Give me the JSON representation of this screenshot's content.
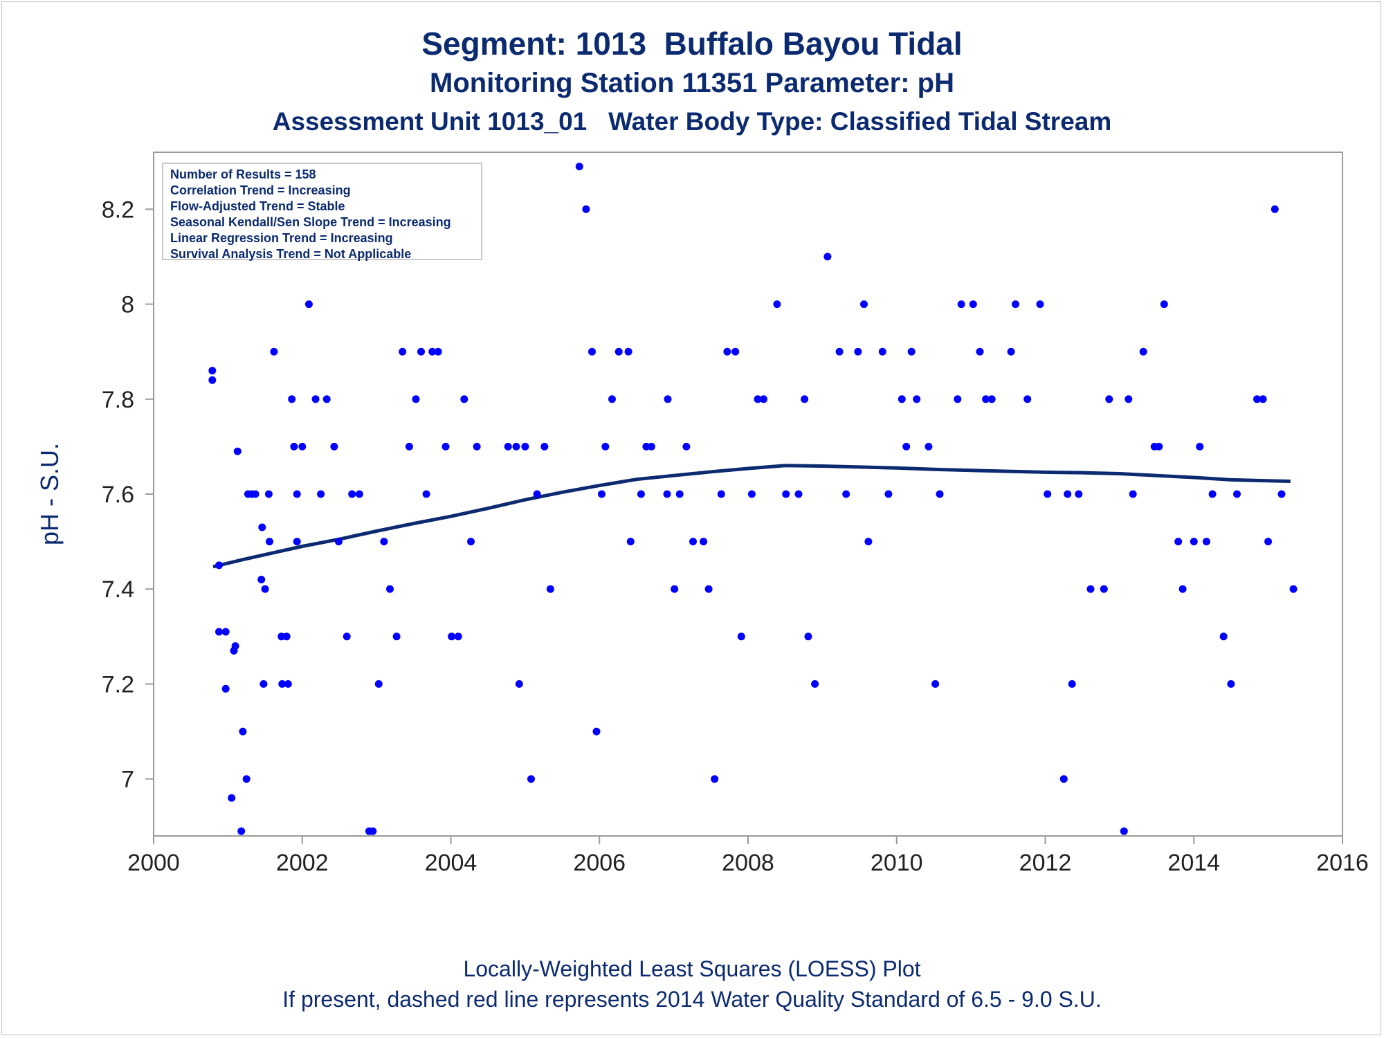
{
  "titles": {
    "line1": "Segment: 1013  Buffalo Bayou Tidal",
    "line2": "Monitoring Station 11351 Parameter: pH",
    "line3": "Assessment Unit 1013_01   Water Body Type: Classified Tidal Stream"
  },
  "footnotes": {
    "line1": "Locally-Weighted Least Squares (LOESS) Plot",
    "line2": "If present, dashed red line represents 2014 Water Quality Standard of 6.5 - 9.0 S.U."
  },
  "stats_box": [
    "Number of Results = 158",
    "Correlation Trend = Increasing",
    "Flow-Adjusted Trend = Stable",
    "Seasonal Kendall/Sen Slope Trend = Increasing",
    "Linear Regression Trend = Increasing",
    "Survival Analysis Trend = Not Applicable"
  ],
  "colors": {
    "points": "#0000ff",
    "loess_line": "#0b2a6f",
    "text": "#0b2a6f",
    "axis": "#9a9a9a"
  },
  "chart_data": {
    "type": "scatter",
    "title": "Segment: 1013  Buffalo Bayou Tidal",
    "xlabel": "",
    "ylabel": "pH - S.U.",
    "xlim": [
      2000,
      2016
    ],
    "ylim": [
      6.88,
      8.32
    ],
    "x_ticks": [
      2000,
      2002,
      2004,
      2006,
      2008,
      2010,
      2012,
      2014,
      2016
    ],
    "y_ticks": [
      7,
      7.2,
      7.4,
      7.6,
      7.8,
      8,
      8.2
    ],
    "y_tick_labels": [
      "7",
      "7.2",
      "7.4",
      "7.6",
      "7.8",
      "8",
      "8.2"
    ],
    "grid": false,
    "series": [
      {
        "type": "scatter",
        "points": [
          [
            2000.79,
            7.86
          ],
          [
            2000.79,
            7.84
          ],
          [
            2000.88,
            7.45
          ],
          [
            2000.88,
            7.31
          ],
          [
            2000.97,
            7.31
          ],
          [
            2000.97,
            7.19
          ],
          [
            2001.05,
            6.96
          ],
          [
            2001.08,
            7.27
          ],
          [
            2001.1,
            7.28
          ],
          [
            2001.13,
            7.69
          ],
          [
            2001.18,
            6.89
          ],
          [
            2001.2,
            7.1
          ],
          [
            2001.25,
            7.0
          ],
          [
            2001.27,
            7.6
          ],
          [
            2001.32,
            7.6
          ],
          [
            2001.37,
            7.6
          ],
          [
            2001.45,
            7.42
          ],
          [
            2001.46,
            7.53
          ],
          [
            2001.48,
            7.2
          ],
          [
            2001.5,
            7.4
          ],
          [
            2001.55,
            7.6
          ],
          [
            2001.56,
            7.5
          ],
          [
            2001.62,
            7.9
          ],
          [
            2001.72,
            7.3
          ],
          [
            2001.73,
            7.2
          ],
          [
            2001.79,
            7.3
          ],
          [
            2001.81,
            7.2
          ],
          [
            2001.86,
            7.8
          ],
          [
            2001.89,
            7.7
          ],
          [
            2001.93,
            7.6
          ],
          [
            2001.93,
            7.5
          ],
          [
            2002.0,
            7.7
          ],
          [
            2002.09,
            8.0
          ],
          [
            2002.18,
            7.8
          ],
          [
            2002.25,
            7.6
          ],
          [
            2002.33,
            7.8
          ],
          [
            2002.43,
            7.7
          ],
          [
            2002.49,
            7.5
          ],
          [
            2002.6,
            7.3
          ],
          [
            2002.67,
            7.6
          ],
          [
            2002.77,
            7.6
          ],
          [
            2002.9,
            6.89
          ],
          [
            2002.95,
            6.89
          ],
          [
            2003.03,
            7.2
          ],
          [
            2003.1,
            7.5
          ],
          [
            2003.18,
            7.4
          ],
          [
            2003.27,
            7.3
          ],
          [
            2003.35,
            7.9
          ],
          [
            2003.44,
            7.7
          ],
          [
            2003.53,
            7.8
          ],
          [
            2003.6,
            7.9
          ],
          [
            2003.67,
            7.6
          ],
          [
            2003.75,
            7.9
          ],
          [
            2003.83,
            7.9
          ],
          [
            2003.93,
            7.7
          ],
          [
            2004.01,
            7.3
          ],
          [
            2004.1,
            7.3
          ],
          [
            2004.18,
            7.8
          ],
          [
            2004.27,
            7.5
          ],
          [
            2004.35,
            7.7
          ],
          [
            2004.77,
            7.7
          ],
          [
            2004.88,
            7.7
          ],
          [
            2004.92,
            7.2
          ],
          [
            2005.0,
            7.7
          ],
          [
            2005.08,
            7.0
          ],
          [
            2005.16,
            7.6
          ],
          [
            2005.26,
            7.7
          ],
          [
            2005.34,
            7.4
          ],
          [
            2005.73,
            8.29
          ],
          [
            2005.82,
            8.2
          ],
          [
            2005.9,
            7.9
          ],
          [
            2005.96,
            7.1
          ],
          [
            2006.03,
            7.6
          ],
          [
            2006.08,
            7.7
          ],
          [
            2006.17,
            7.8
          ],
          [
            2006.26,
            7.9
          ],
          [
            2006.39,
            7.9
          ],
          [
            2006.42,
            7.5
          ],
          [
            2006.56,
            7.6
          ],
          [
            2006.63,
            7.7
          ],
          [
            2006.7,
            7.7
          ],
          [
            2006.91,
            7.6
          ],
          [
            2006.92,
            7.8
          ],
          [
            2007.01,
            7.4
          ],
          [
            2007.08,
            7.6
          ],
          [
            2007.17,
            7.7
          ],
          [
            2007.26,
            7.5
          ],
          [
            2007.4,
            7.5
          ],
          [
            2007.47,
            7.4
          ],
          [
            2007.55,
            7.0
          ],
          [
            2007.64,
            7.6
          ],
          [
            2007.72,
            7.9
          ],
          [
            2007.83,
            7.9
          ],
          [
            2007.91,
            7.3
          ],
          [
            2008.05,
            7.6
          ],
          [
            2008.13,
            7.8
          ],
          [
            2008.21,
            7.8
          ],
          [
            2008.39,
            8.0
          ],
          [
            2008.51,
            7.6
          ],
          [
            2008.68,
            7.6
          ],
          [
            2008.76,
            7.8
          ],
          [
            2008.81,
            7.3
          ],
          [
            2008.9,
            7.2
          ],
          [
            2009.07,
            8.1
          ],
          [
            2009.23,
            7.9
          ],
          [
            2009.32,
            7.6
          ],
          [
            2009.48,
            7.9
          ],
          [
            2009.56,
            8.0
          ],
          [
            2009.62,
            7.5
          ],
          [
            2009.81,
            7.9
          ],
          [
            2009.89,
            7.6
          ],
          [
            2010.07,
            7.8
          ],
          [
            2010.13,
            7.7
          ],
          [
            2010.2,
            7.9
          ],
          [
            2010.27,
            7.8
          ],
          [
            2010.43,
            7.7
          ],
          [
            2010.52,
            7.2
          ],
          [
            2010.58,
            7.6
          ],
          [
            2010.82,
            7.8
          ],
          [
            2010.87,
            8.0
          ],
          [
            2011.03,
            8.0
          ],
          [
            2011.12,
            7.9
          ],
          [
            2011.2,
            7.8
          ],
          [
            2011.28,
            7.8
          ],
          [
            2011.54,
            7.9
          ],
          [
            2011.6,
            8.0
          ],
          [
            2011.76,
            7.8
          ],
          [
            2011.93,
            8.0
          ],
          [
            2012.03,
            7.6
          ],
          [
            2012.25,
            7.0
          ],
          [
            2012.3,
            7.6
          ],
          [
            2012.36,
            7.2
          ],
          [
            2012.45,
            7.6
          ],
          [
            2012.61,
            7.4
          ],
          [
            2012.79,
            7.4
          ],
          [
            2012.86,
            7.8
          ],
          [
            2013.06,
            6.89
          ],
          [
            2013.12,
            7.8
          ],
          [
            2013.18,
            7.6
          ],
          [
            2013.32,
            7.9
          ],
          [
            2013.47,
            7.7
          ],
          [
            2013.53,
            7.7
          ],
          [
            2013.6,
            8.0
          ],
          [
            2013.79,
            7.5
          ],
          [
            2013.85,
            7.4
          ],
          [
            2014.0,
            7.5
          ],
          [
            2014.08,
            7.7
          ],
          [
            2014.17,
            7.5
          ],
          [
            2014.25,
            7.6
          ],
          [
            2014.4,
            7.3
          ],
          [
            2014.5,
            7.2
          ],
          [
            2014.58,
            7.6
          ],
          [
            2014.85,
            7.8
          ],
          [
            2014.93,
            7.8
          ],
          [
            2015.0,
            7.5
          ],
          [
            2015.09,
            8.2
          ],
          [
            2015.18,
            7.6
          ],
          [
            2015.34,
            7.4
          ]
        ]
      },
      {
        "type": "line",
        "points": [
          [
            2000.8,
            7.447
          ],
          [
            2001.2,
            7.462
          ],
          [
            2001.6,
            7.476
          ],
          [
            2002.0,
            7.49
          ],
          [
            2002.5,
            7.505
          ],
          [
            2003.0,
            7.522
          ],
          [
            2003.5,
            7.538
          ],
          [
            2004.0,
            7.553
          ],
          [
            2004.5,
            7.57
          ],
          [
            2005.0,
            7.588
          ],
          [
            2005.5,
            7.604
          ],
          [
            2006.0,
            7.618
          ],
          [
            2006.5,
            7.631
          ],
          [
            2007.0,
            7.639
          ],
          [
            2007.5,
            7.647
          ],
          [
            2008.0,
            7.654
          ],
          [
            2008.5,
            7.66
          ],
          [
            2009.0,
            7.659
          ],
          [
            2009.5,
            7.657
          ],
          [
            2010.0,
            7.655
          ],
          [
            2010.5,
            7.652
          ],
          [
            2011.0,
            7.65
          ],
          [
            2011.5,
            7.648
          ],
          [
            2012.0,
            7.646
          ],
          [
            2012.5,
            7.645
          ],
          [
            2013.0,
            7.643
          ],
          [
            2013.5,
            7.639
          ],
          [
            2014.0,
            7.635
          ],
          [
            2014.5,
            7.63
          ],
          [
            2015.0,
            7.628
          ],
          [
            2015.3,
            7.627
          ]
        ]
      }
    ]
  }
}
